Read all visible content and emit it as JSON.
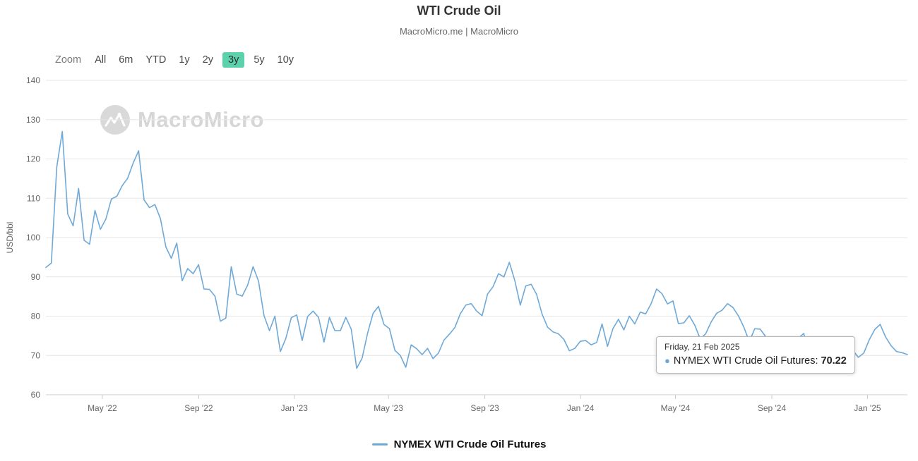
{
  "header": {
    "title": "WTI Crude Oil",
    "subtitle": "MacroMicro.me | MacroMicro"
  },
  "zoom": {
    "label": "Zoom",
    "options": [
      "All",
      "6m",
      "YTD",
      "1y",
      "2y",
      "3y",
      "5y",
      "10y"
    ],
    "selected": "3y"
  },
  "watermark": {
    "text": "MacroMicro"
  },
  "tooltip": {
    "date": "Friday, 21 Feb 2025",
    "series_label": "NYMEX WTI Crude Oil Futures:",
    "value": "70.22"
  },
  "legend": {
    "label": "NYMEX WTI Crude Oil Futures"
  },
  "colors": {
    "line": "#6fa9d8",
    "selected_zoom_bg": "#5bd1ac",
    "grid": "#e6e6e6",
    "axis": "#cccccc"
  },
  "chart_data": {
    "type": "line",
    "title": "WTI Crude Oil",
    "xlabel": "",
    "ylabel": "USD/bbl",
    "ylim": [
      60,
      140
    ],
    "y_ticks": [
      60,
      70,
      80,
      90,
      100,
      110,
      120,
      130,
      140
    ],
    "grid": "horizontal",
    "legend_position": "bottom",
    "x_ticks": [
      {
        "label": "May '22",
        "t": 0.0655
      },
      {
        "label": "Sep '22",
        "t": 0.1774
      },
      {
        "label": "Jan '23",
        "t": 0.2884
      },
      {
        "label": "May '23",
        "t": 0.3976
      },
      {
        "label": "Sep '23",
        "t": 0.5095
      },
      {
        "label": "Jan '24",
        "t": 0.6206
      },
      {
        "label": "May '24",
        "t": 0.7307
      },
      {
        "label": "Sep '24",
        "t": 0.8426
      },
      {
        "label": "Jan '25",
        "t": 0.9536
      }
    ],
    "series": [
      {
        "name": "NYMEX WTI Crude Oil Futures",
        "color": "#6fa9d8",
        "x_range": [
          "2022-02-18",
          "2025-02-21"
        ],
        "interval": "weekly",
        "last_point": {
          "date": "Friday, 21 Feb 2025",
          "value": 70.22
        },
        "values": [
          92.4,
          93.5,
          118.0,
          127.0,
          106.0,
          103.0,
          112.5,
          99.3,
          98.3,
          106.9,
          102.1,
          104.7,
          109.8,
          110.5,
          113.2,
          115.1,
          118.9,
          122.1,
          109.6,
          107.6,
          108.4,
          104.8,
          97.6,
          94.7,
          98.6,
          89.0,
          92.1,
          90.8,
          93.1,
          86.9,
          86.8,
          85.1,
          78.7,
          79.5,
          92.6,
          85.6,
          85.1,
          87.9,
          92.6,
          88.9,
          80.1,
          76.3,
          80.0,
          71.0,
          74.3,
          79.6,
          80.3,
          73.8,
          79.9,
          81.3,
          79.7,
          73.4,
          79.7,
          76.3,
          76.3,
          79.7,
          76.7,
          66.7,
          69.3,
          75.7,
          80.7,
          82.5,
          77.9,
          76.8,
          71.3,
          70.0,
          67.0,
          72.7,
          71.7,
          70.2,
          71.8,
          69.2,
          70.6,
          73.9,
          75.4,
          77.1,
          80.6,
          82.8,
          83.2,
          81.3,
          80.1,
          85.6,
          87.5,
          90.8,
          90.0,
          93.7,
          89.0,
          82.8,
          87.7,
          88.1,
          85.5,
          80.5,
          77.2,
          76.0,
          75.5,
          74.1,
          71.2,
          71.8,
          73.6,
          73.8,
          72.7,
          73.3,
          78.0,
          72.3,
          76.8,
          79.2,
          76.5,
          80.0,
          78.0,
          81.0,
          80.6,
          83.2,
          86.9,
          85.7,
          83.1,
          83.9,
          78.1,
          78.3,
          80.1,
          77.7,
          74.2,
          75.5,
          78.5,
          80.7,
          81.5,
          83.2,
          82.2,
          80.1,
          77.2,
          73.5,
          76.8,
          76.7,
          74.8,
          73.6,
          67.7,
          65.8,
          70.7,
          68.2,
          74.4,
          75.6,
          69.2,
          71.8,
          69.5,
          70.4,
          67.0,
          71.2,
          68.0,
          67.2,
          71.3,
          69.5,
          70.6,
          73.96,
          76.6,
          77.9,
          74.7,
          72.5,
          71.0,
          70.7,
          70.22
        ]
      }
    ]
  }
}
